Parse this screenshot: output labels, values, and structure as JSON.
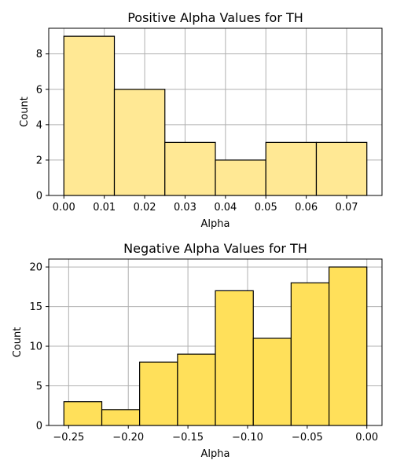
{
  "chart_data": [
    {
      "type": "bar",
      "title": "Positive Alpha Values for TH",
      "xlabel": "Alpha",
      "ylabel": "Count",
      "bin_edges": [
        0.0,
        0.0125,
        0.025,
        0.0375,
        0.05,
        0.0625,
        0.075
      ],
      "values": [
        9,
        6,
        3,
        2,
        3,
        3
      ],
      "xlim": [
        -0.00375,
        0.07875
      ],
      "ylim": [
        0,
        9.45
      ],
      "xticks": [
        0.0,
        0.01,
        0.02,
        0.03,
        0.04,
        0.05,
        0.06,
        0.07
      ],
      "xtick_labels": [
        "0.00",
        "0.01",
        "0.02",
        "0.03",
        "0.04",
        "0.05",
        "0.06",
        "0.07"
      ],
      "yticks": [
        0,
        2,
        4,
        6,
        8
      ],
      "ytick_labels": [
        "0",
        "2",
        "4",
        "6",
        "8"
      ],
      "grid": true,
      "color": "#ffe894"
    },
    {
      "type": "bar",
      "title": "Negative Alpha Values for TH",
      "xlabel": "Alpha",
      "ylabel": "Count",
      "bin_edges": [
        -0.254,
        -0.2222,
        -0.1905,
        -0.1587,
        -0.127,
        -0.0952,
        -0.0635,
        -0.0317,
        0.0
      ],
      "values": [
        3,
        2,
        8,
        9,
        17,
        11,
        18,
        20
      ],
      "xlim": [
        -0.2667,
        0.0127
      ],
      "ylim": [
        0,
        21
      ],
      "xticks": [
        -0.25,
        -0.2,
        -0.15,
        -0.1,
        -0.05,
        0.0
      ],
      "xtick_labels": [
        "−0.25",
        "−0.20",
        "−0.15",
        "−0.10",
        "−0.05",
        "0.00"
      ],
      "yticks": [
        0,
        5,
        10,
        15,
        20
      ],
      "ytick_labels": [
        "0",
        "5",
        "10",
        "15",
        "20"
      ],
      "grid": true,
      "color": "#ffe05a"
    }
  ]
}
